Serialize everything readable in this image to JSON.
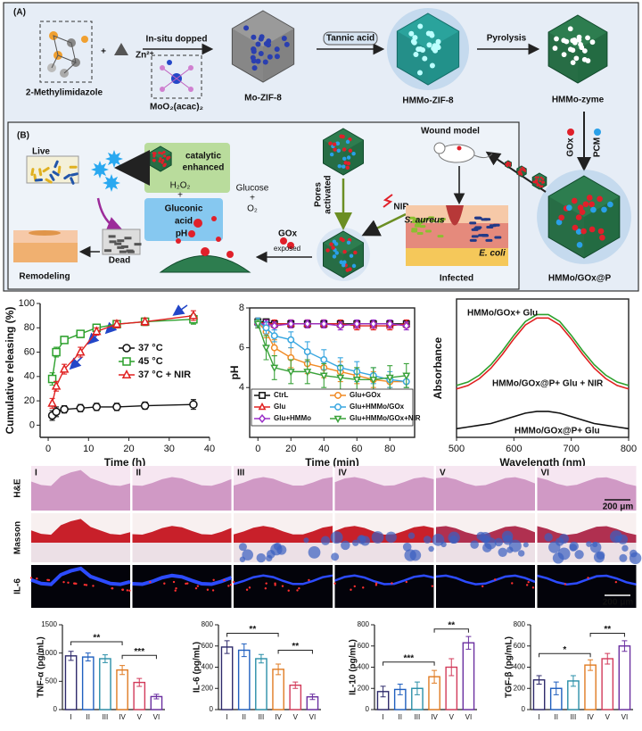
{
  "scheme_a": {
    "label": "(A)",
    "reactant": "2-Methylimidazole",
    "plus": "+",
    "zinc": "Zn²⁺",
    "step1": "In-situ dopped",
    "dopant": "MoO₂(acac)₂",
    "product1": "Mo-ZIF-8",
    "step2": "Tannic acid",
    "product2": "HMMo-ZIF-8",
    "step3": "Pyrolysis",
    "product3": "HMMo-zyme",
    "load1": "GOx",
    "load2": "PCM",
    "product4": "HMMo/GOx@P"
  },
  "scheme_b": {
    "label": "(B)",
    "wound_model": "Wound model",
    "live": "Live",
    "dead": "Dead",
    "remodeling": "Remodeling",
    "catalytic": [
      "catalytic",
      "enhanced"
    ],
    "h2o2": "H₂O₂",
    "plus": "+",
    "glucose": "Glucose",
    "o2": "O₂",
    "gluconic": [
      "Gluconic",
      "acid"
    ],
    "ph": "pH↓",
    "gox": "GOx",
    "exposed": "exposed",
    "pores": [
      "Pores",
      "activated"
    ],
    "nir": "NIR",
    "s_aureus": "S. aureus",
    "e_coli": "E. coli",
    "infected": "Infected"
  },
  "histology": {
    "rows": [
      "H&E",
      "Masson",
      "IL-6"
    ],
    "groups": [
      "I",
      "II",
      "III",
      "IV",
      "V",
      "VI"
    ],
    "scale_bar": "200 μm"
  },
  "chart_data": [
    {
      "type": "line",
      "xlabel": "Time (h)",
      "ylabel": "Cumulative releasing (%)",
      "x": [
        1,
        2,
        4,
        8,
        12,
        17,
        24,
        36
      ],
      "xlim": [
        -2,
        40
      ],
      "xticks": [
        0,
        10,
        20,
        30,
        40
      ],
      "ylim": [
        -10,
        100
      ],
      "yticks": [
        0,
        20,
        40,
        60,
        80,
        100
      ],
      "legend": "center right",
      "series": [
        {
          "name": "37 °C",
          "color": "#111111",
          "marker": "circle",
          "values": [
            8,
            11,
            13,
            14,
            15,
            15,
            16,
            17
          ],
          "errors": [
            4,
            4,
            3,
            3,
            3,
            3,
            3,
            4
          ]
        },
        {
          "name": "45 °C",
          "color": "#2ca02c",
          "marker": "square",
          "values": [
            38,
            60,
            70,
            75,
            80,
            83,
            85,
            87
          ],
          "errors": [
            5,
            4,
            3,
            3,
            3,
            3,
            3,
            4
          ]
        },
        {
          "name": "37 °C + NIR",
          "color": "#e02020",
          "marker": "triangle",
          "values": [
            18,
            32,
            46,
            60,
            77,
            83,
            85,
            90
          ],
          "errors": [
            4,
            4,
            4,
            4,
            3,
            3,
            3,
            4
          ]
        }
      ]
    },
    {
      "type": "line",
      "xlabel": "Time (min)",
      "ylabel": "pH",
      "x": [
        0,
        5,
        10,
        20,
        30,
        40,
        50,
        60,
        70,
        80,
        90
      ],
      "xlim": [
        -5,
        95
      ],
      "xticks": [
        0,
        20,
        40,
        60,
        80
      ],
      "ylim": [
        1.5,
        8
      ],
      "yticks": [
        4,
        6,
        8
      ],
      "legend": "lower center",
      "series": [
        {
          "name": "CtrL",
          "color": "#111111",
          "marker": "square",
          "values": [
            7.3,
            7.3,
            7.2,
            7.2,
            7.2,
            7.2,
            7.2,
            7.2,
            7.2,
            7.2,
            7.2
          ],
          "errors": [
            0.15,
            0.15,
            0.15,
            0.15,
            0.15,
            0.15,
            0.15,
            0.15,
            0.15,
            0.15,
            0.15
          ]
        },
        {
          "name": "Glu",
          "color": "#e02020",
          "marker": "triangle",
          "values": [
            7.3,
            7.2,
            7.2,
            7.2,
            7.2,
            7.2,
            7.2,
            7.1,
            7.1,
            7.1,
            7.2
          ],
          "errors": [
            0.2,
            0.2,
            0.2,
            0.2,
            0.2,
            0.2,
            0.2,
            0.2,
            0.2,
            0.2,
            0.2
          ]
        },
        {
          "name": "Glu+HMMo",
          "color": "#9b30c8",
          "marker": "diamond",
          "values": [
            7.2,
            7.2,
            7.1,
            7.2,
            7.2,
            7.2,
            7.1,
            7.2,
            7.2,
            7.2,
            7.1
          ],
          "errors": [
            0.2,
            0.2,
            0.2,
            0.2,
            0.2,
            0.2,
            0.2,
            0.2,
            0.2,
            0.2,
            0.2
          ]
        },
        {
          "name": "Glu+GOx",
          "color": "#f08a24",
          "marker": "circle",
          "values": [
            7.3,
            6.8,
            6.0,
            5.5,
            5.2,
            5.0,
            4.8,
            4.6,
            4.4,
            4.3,
            4.3
          ],
          "errors": [
            0.2,
            0.3,
            0.4,
            0.5,
            0.5,
            0.5,
            0.5,
            0.4,
            0.4,
            0.3,
            0.3
          ]
        },
        {
          "name": "Glu+HMMo/GOx",
          "color": "#39a7e0",
          "marker": "circle",
          "values": [
            7.3,
            7.0,
            6.6,
            6.4,
            5.8,
            5.4,
            5.0,
            4.8,
            4.6,
            4.4,
            4.3
          ],
          "errors": [
            0.2,
            0.3,
            0.3,
            0.4,
            0.5,
            0.5,
            0.5,
            0.5,
            0.4,
            0.4,
            0.3
          ]
        },
        {
          "name": "Glu+HMMo/GOx+NIR",
          "color": "#3aa23a",
          "marker": "triangle-down",
          "values": [
            7.2,
            6.0,
            5.0,
            4.8,
            4.8,
            4.6,
            4.5,
            4.4,
            4.4,
            4.5,
            4.6
          ],
          "errors": [
            0.2,
            0.6,
            0.6,
            0.6,
            0.6,
            0.6,
            0.6,
            0.6,
            0.6,
            0.6,
            0.6
          ]
        }
      ]
    },
    {
      "type": "line",
      "xlabel": "Wavelength (nm)",
      "ylabel": "Absorbance",
      "x": [
        500,
        520,
        540,
        560,
        580,
        600,
        620,
        640,
        660,
        680,
        700,
        720,
        740,
        760,
        780,
        800
      ],
      "xlim": [
        500,
        800
      ],
      "xticks": [
        500,
        600,
        700,
        800
      ],
      "ylim": [
        0,
        0.8
      ],
      "legend": "inline",
      "series": [
        {
          "name": "HMMo/GOx+ Glu",
          "color": "#2ca02c",
          "values": [
            0.3,
            0.32,
            0.36,
            0.42,
            0.5,
            0.59,
            0.67,
            0.71,
            0.71,
            0.67,
            0.59,
            0.5,
            0.42,
            0.36,
            0.32,
            0.3
          ]
        },
        {
          "name": "HMMo/GOx@P+ Glu + NIR",
          "color": "#e02020",
          "values": [
            0.28,
            0.3,
            0.34,
            0.4,
            0.48,
            0.57,
            0.65,
            0.69,
            0.69,
            0.65,
            0.57,
            0.48,
            0.4,
            0.34,
            0.3,
            0.28
          ]
        },
        {
          "name": "HMMo/GOx@P+ Glu",
          "color": "#111111",
          "values": [
            0.05,
            0.06,
            0.07,
            0.08,
            0.1,
            0.12,
            0.14,
            0.15,
            0.15,
            0.14,
            0.12,
            0.1,
            0.08,
            0.07,
            0.06,
            0.05
          ]
        }
      ]
    },
    {
      "type": "bar",
      "ylabel": "TNF-α (pg/mL)",
      "categories": [
        "I",
        "II",
        "III",
        "IV",
        "V",
        "VI"
      ],
      "values": [
        950,
        930,
        900,
        700,
        480,
        230
      ],
      "errors": [
        80,
        70,
        70,
        80,
        70,
        40
      ],
      "colors": [
        "#2e2a6b",
        "#1f5fbf",
        "#2a8fa8",
        "#e07b22",
        "#d23a5a",
        "#6b2fa0"
      ],
      "ylim": [
        0,
        1500
      ],
      "yticks": [
        0,
        500,
        1000,
        1500
      ],
      "annotations": [
        "**",
        "***"
      ]
    },
    {
      "type": "bar",
      "ylabel": "IL-6 (pg/mL)",
      "categories": [
        "I",
        "II",
        "III",
        "IV",
        "V",
        "VI"
      ],
      "values": [
        590,
        560,
        480,
        380,
        230,
        120
      ],
      "errors": [
        60,
        60,
        40,
        50,
        30,
        25
      ],
      "colors": [
        "#2e2a6b",
        "#1f5fbf",
        "#2a8fa8",
        "#e07b22",
        "#d23a5a",
        "#6b2fa0"
      ],
      "ylim": [
        0,
        800
      ],
      "yticks": [
        0,
        200,
        400,
        600,
        800
      ],
      "annotations": [
        "**",
        "**"
      ]
    },
    {
      "type": "bar",
      "ylabel": "IL-10 (pg/mL)",
      "categories": [
        "I",
        "II",
        "III",
        "IV",
        "V",
        "VI"
      ],
      "values": [
        170,
        190,
        200,
        310,
        400,
        630
      ],
      "errors": [
        50,
        50,
        60,
        60,
        80,
        60
      ],
      "colors": [
        "#2e2a6b",
        "#1f5fbf",
        "#2a8fa8",
        "#e07b22",
        "#d23a5a",
        "#6b2fa0"
      ],
      "ylim": [
        0,
        800
      ],
      "yticks": [
        0,
        200,
        400,
        600,
        800
      ],
      "annotations": [
        "***",
        "**"
      ]
    },
    {
      "type": "bar",
      "ylabel": "TGF-β (pg/mL)",
      "categories": [
        "I",
        "II",
        "III",
        "IV",
        "V",
        "VI"
      ],
      "values": [
        280,
        200,
        270,
        420,
        480,
        600
      ],
      "errors": [
        40,
        60,
        50,
        50,
        50,
        50
      ],
      "colors": [
        "#2e2a6b",
        "#1f5fbf",
        "#2a8fa8",
        "#e07b22",
        "#d23a5a",
        "#6b2fa0"
      ],
      "ylim": [
        0,
        800
      ],
      "yticks": [
        0,
        200,
        400,
        600,
        800
      ],
      "annotations": [
        "*",
        "**"
      ]
    }
  ]
}
